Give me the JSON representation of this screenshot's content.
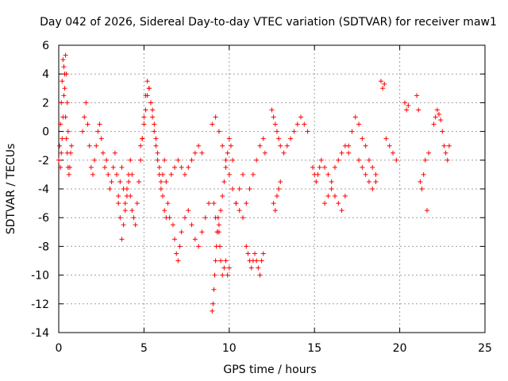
{
  "chart_data": {
    "type": "scatter",
    "title": "Day 042 of 2026, Sidereal Day-to-day VTEC variation (SDTVAR) for receiver maw1",
    "xlabel": "GPS time / hours",
    "ylabel": "SDTVAR / TECUs",
    "xlim": [
      0,
      25
    ],
    "ylim": [
      -14,
      6
    ],
    "xticks": [
      0,
      5,
      10,
      15,
      20,
      25
    ],
    "yticks": [
      -14,
      -12,
      -10,
      -8,
      -6,
      -4,
      -2,
      0,
      2,
      4,
      6
    ],
    "grid": true,
    "marker": "+",
    "marker_color": "#ff0000",
    "series": [
      {
        "name": "SDTVAR",
        "x": [
          0.0,
          0.05,
          0.1,
          0.15,
          0.2,
          0.25,
          0.3,
          0.35,
          0.4,
          0.45,
          0.5,
          0.55,
          0.6,
          0.65,
          0.7,
          0.75,
          0.1,
          0.15,
          0.2,
          0.25,
          0.3,
          0.35,
          0.4,
          0.45,
          0.5,
          0.55,
          1.4,
          1.5,
          1.6,
          1.7,
          1.8,
          1.9,
          2.0,
          2.1,
          2.2,
          2.3,
          2.4,
          2.5,
          2.6,
          2.7,
          2.8,
          2.9,
          3.0,
          3.1,
          3.2,
          3.3,
          3.4,
          3.5,
          3.6,
          3.7,
          3.8,
          3.9,
          4.0,
          4.1,
          4.2,
          4.3,
          3.5,
          3.6,
          3.7,
          3.8,
          3.9,
          4.0,
          4.1,
          4.2,
          4.3,
          4.4,
          4.5,
          4.6,
          4.7,
          4.8,
          4.9,
          5.0,
          5.1,
          5.2,
          5.3,
          5.4,
          5.5,
          5.6,
          5.7,
          5.8,
          5.9,
          6.0,
          6.1,
          6.2,
          6.3,
          6.4,
          6.5,
          4.8,
          4.9,
          5.0,
          5.1,
          5.2,
          5.3,
          5.4,
          5.5,
          5.6,
          5.7,
          5.8,
          5.9,
          6.0,
          6.1,
          6.2,
          6.3,
          6.6,
          6.8,
          7.0,
          7.2,
          7.4,
          7.6,
          7.8,
          8.0,
          8.2,
          8.4,
          6.7,
          6.8,
          6.9,
          7.0,
          7.1,
          7.2,
          7.4,
          7.6,
          7.8,
          8.0,
          8.2,
          8.4,
          8.6,
          8.8,
          9.0,
          9.05,
          9.1,
          9.15,
          9.2,
          9.25,
          9.3,
          9.35,
          9.4,
          9.45,
          9.5,
          9.6,
          9.7,
          9.8,
          9.9,
          10.0,
          9.0,
          9.2,
          9.4,
          9.6,
          9.8,
          10.0,
          10.2,
          10.4,
          10.6,
          10.8,
          9.1,
          9.2,
          9.3,
          9.4,
          9.5,
          9.6,
          9.7,
          9.8,
          9.9,
          10.0,
          10.1,
          10.2,
          10.4,
          10.6,
          10.8,
          11.0,
          11.2,
          11.4,
          11.6,
          11.8,
          12.0,
          12.1,
          11.0,
          11.1,
          11.2,
          11.3,
          11.4,
          11.5,
          11.6,
          11.7,
          11.8,
          11.9,
          12.0,
          12.5,
          12.6,
          12.7,
          12.8,
          12.9,
          13.0,
          13.2,
          13.4,
          13.6,
          13.8,
          14.0,
          14.2,
          14.4,
          14.6,
          12.6,
          12.7,
          12.8,
          12.9,
          13.0,
          14.9,
          15.0,
          15.1,
          15.2,
          15.3,
          15.4,
          15.6,
          15.8,
          16.0,
          16.2,
          16.4,
          16.6,
          16.8,
          17.0,
          15.6,
          15.8,
          16.0,
          16.2,
          16.4,
          16.6,
          16.8,
          17.0,
          17.2,
          17.4,
          17.6,
          17.8,
          18.0,
          18.2,
          18.4,
          18.6,
          17.6,
          17.8,
          18.0,
          18.2,
          18.4,
          18.6,
          18.9,
          19.0,
          19.1,
          19.2,
          19.4,
          19.6,
          19.8,
          20.3,
          20.4,
          20.5,
          21.0,
          21.1,
          21.2,
          21.3,
          21.4,
          21.5,
          21.6,
          21.7,
          22.0,
          22.1,
          22.2,
          22.3,
          22.4,
          22.5,
          22.6,
          22.7,
          22.8,
          22.9
        ],
        "y": [
          -2.0,
          -1.0,
          0.5,
          2.0,
          3.5,
          5.0,
          4.5,
          3.0,
          1.0,
          -0.5,
          -1.5,
          -2.5,
          -3.0,
          -2.5,
          -1.5,
          -1.0,
          -2.5,
          -1.5,
          -0.5,
          1.0,
          2.5,
          4.0,
          5.3,
          4.0,
          2.0,
          0.0,
          0.0,
          1.0,
          2.0,
          0.5,
          -1.0,
          -2.5,
          -3.0,
          -2.0,
          -1.0,
          0.0,
          0.5,
          -0.5,
          -1.5,
          -2.5,
          -2.0,
          -3.0,
          -4.0,
          -3.5,
          -2.5,
          -1.5,
          -3.0,
          -4.5,
          -3.5,
          -2.5,
          -4.0,
          -5.0,
          -4.0,
          -3.0,
          -2.0,
          -3.0,
          -5.0,
          -6.0,
          -7.5,
          -6.5,
          -5.5,
          -4.5,
          -3.5,
          -4.5,
          -5.5,
          -6.0,
          -6.5,
          -5.0,
          -3.5,
          -2.0,
          -0.5,
          1.0,
          2.5,
          3.5,
          3.0,
          2.0,
          1.0,
          0.0,
          -1.0,
          -2.0,
          -3.0,
          -4.0,
          -3.0,
          -2.0,
          -3.5,
          -5.0,
          -6.0,
          -1.0,
          -0.5,
          0.5,
          1.5,
          2.5,
          3.0,
          2.0,
          1.5,
          0.5,
          -0.5,
          -1.5,
          -2.5,
          -3.5,
          -4.5,
          -5.5,
          -6.0,
          -3.0,
          -2.5,
          -2.0,
          -2.5,
          -3.0,
          -2.5,
          -2.0,
          -1.5,
          -1.0,
          -1.5,
          -6.5,
          -7.5,
          -8.5,
          -9.0,
          -8.0,
          -7.0,
          -6.0,
          -5.5,
          -6.5,
          -7.5,
          -8.0,
          -7.0,
          -6.0,
          -5.0,
          -12.5,
          -12.0,
          -11.0,
          -10.0,
          -9.0,
          -8.0,
          -7.0,
          -6.0,
          -7.0,
          -8.0,
          -9.0,
          -10.0,
          -9.5,
          -9.0,
          -10.0,
          -9.5,
          0.5,
          1.0,
          0.0,
          -1.0,
          -2.0,
          -3.0,
          -4.0,
          -5.0,
          -4.0,
          -3.0,
          -5.0,
          -6.0,
          -7.0,
          -6.5,
          -5.5,
          -4.5,
          -3.5,
          -2.5,
          -1.5,
          -0.5,
          -1.0,
          -2.0,
          -5.0,
          -5.5,
          -6.0,
          -5.0,
          -4.0,
          -3.0,
          -2.0,
          -1.0,
          -0.5,
          -1.5,
          -8.0,
          -8.5,
          -9.0,
          -9.5,
          -9.0,
          -8.5,
          -9.0,
          -9.5,
          -10.0,
          -9.0,
          -8.5,
          1.5,
          1.0,
          0.5,
          0.0,
          -0.5,
          -1.0,
          -1.5,
          -1.0,
          -0.5,
          0.0,
          0.5,
          1.0,
          0.5,
          0.0,
          -5.0,
          -5.5,
          -4.5,
          -4.0,
          -3.5,
          -2.5,
          -3.0,
          -3.5,
          -3.0,
          -2.5,
          -2.0,
          -2.5,
          -3.0,
          -3.5,
          -2.5,
          -2.0,
          -1.5,
          -1.0,
          -1.5,
          -5.0,
          -4.5,
          -4.0,
          -4.5,
          -5.0,
          -5.5,
          -4.5,
          -1.0,
          0.0,
          1.0,
          0.5,
          -0.5,
          -1.0,
          -2.0,
          -2.5,
          -3.0,
          -2.0,
          -2.5,
          -3.0,
          -3.5,
          -4.0,
          -3.5,
          3.5,
          3.0,
          3.3,
          -0.5,
          -1.0,
          -1.5,
          -2.0,
          2.0,
          1.5,
          1.8,
          2.5,
          1.5,
          -3.5,
          -4.0,
          -3.0,
          -2.0,
          -5.5,
          -1.5,
          0.5,
          1.0,
          1.5,
          1.2,
          0.8,
          0.0,
          -1.0,
          -1.5,
          -2.0,
          -1.0
        ]
      }
    ]
  }
}
